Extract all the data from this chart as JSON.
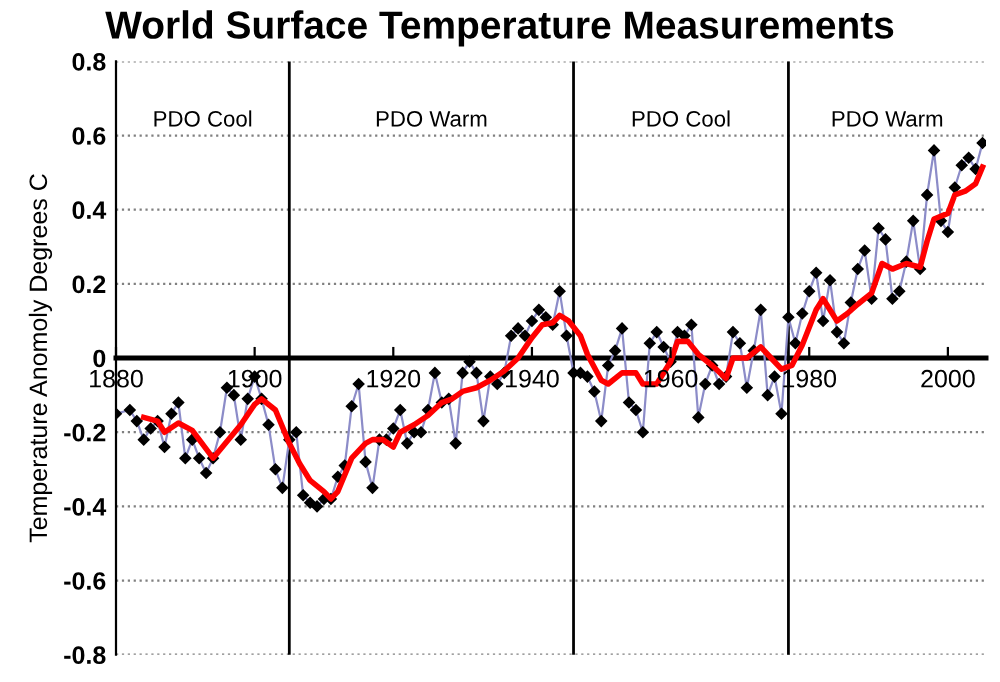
{
  "chart_data": {
    "type": "line",
    "title": "World Surface Temperature Measurements",
    "ylabel": "Temperature Anomoly Degrees C",
    "xlim": [
      1880,
      2005.5
    ],
    "xticks": [
      1880,
      1900,
      1920,
      1940,
      1960,
      1980,
      2000
    ],
    "ylim": [
      -0.8,
      0.8
    ],
    "yticks": [
      -0.8,
      -0.6,
      -0.4,
      -0.2,
      0,
      0.2,
      0.4,
      0.6,
      0.8
    ],
    "grid": "y",
    "legend": false,
    "ref_lines": [
      {
        "axis": "x",
        "value": 1905,
        "color": "#000000"
      },
      {
        "axis": "x",
        "value": 1946,
        "color": "#000000"
      },
      {
        "axis": "x",
        "value": 1977,
        "color": "#000000"
      }
    ],
    "annotations": [
      "PDO Cool",
      "PDO Warm",
      "PDO Cool",
      "PDO Warm"
    ],
    "series": [
      {
        "color": "#8c8cc8",
        "marker": "diamond",
        "x": [
          1880,
          1882,
          1883,
          1884,
          1885,
          1886,
          1887,
          1888,
          1889,
          1890,
          1891,
          1892,
          1893,
          1894,
          1895,
          1896,
          1897,
          1898,
          1899,
          1900,
          1901,
          1902,
          1903,
          1904,
          1905,
          1906,
          1907,
          1908,
          1909,
          1910,
          1911,
          1912,
          1913,
          1914,
          1915,
          1916,
          1917,
          1918,
          1919,
          1920,
          1921,
          1922,
          1923,
          1924,
          1925,
          1926,
          1927,
          1928,
          1929,
          1930,
          1931,
          1932,
          1933,
          1934,
          1935,
          1936,
          1937,
          1938,
          1939,
          1940,
          1941,
          1942,
          1943,
          1944,
          1945,
          1946,
          1947,
          1948,
          1949,
          1950,
          1951,
          1952,
          1953,
          1954,
          1955,
          1956,
          1957,
          1958,
          1959,
          1960,
          1961,
          1962,
          1963,
          1964,
          1965,
          1966,
          1967,
          1968,
          1969,
          1970,
          1971,
          1972,
          1973,
          1974,
          1975,
          1976,
          1977,
          1978,
          1979,
          1980,
          1981,
          1982,
          1983,
          1984,
          1985,
          1986,
          1987,
          1988,
          1989,
          1990,
          1991,
          1992,
          1993,
          1994,
          1995,
          1996,
          1997,
          1998,
          1999,
          2000,
          2001,
          2002,
          2003,
          2004,
          2005
        ],
        "values": [
          -0.15,
          -0.14,
          -0.17,
          -0.22,
          -0.19,
          -0.17,
          -0.24,
          -0.15,
          -0.12,
          -0.27,
          -0.22,
          -0.27,
          -0.31,
          -0.27,
          -0.2,
          -0.08,
          -0.1,
          -0.22,
          -0.11,
          -0.05,
          -0.11,
          -0.18,
          -0.3,
          -0.35,
          -0.22,
          -0.2,
          -0.37,
          -0.39,
          -0.4,
          -0.38,
          -0.38,
          -0.32,
          -0.29,
          -0.13,
          -0.07,
          -0.28,
          -0.35,
          -0.22,
          -0.22,
          -0.19,
          -0.14,
          -0.23,
          -0.2,
          -0.2,
          -0.14,
          -0.04,
          -0.12,
          -0.11,
          -0.23,
          -0.04,
          -0.01,
          -0.04,
          -0.17,
          -0.05,
          -0.07,
          -0.04,
          0.06,
          0.08,
          0.06,
          0.1,
          0.13,
          0.11,
          0.09,
          0.18,
          0.06,
          -0.04,
          -0.04,
          -0.05,
          -0.09,
          -0.17,
          -0.02,
          0.02,
          0.08,
          -0.12,
          -0.14,
          -0.2,
          0.04,
          0.07,
          0.03,
          -0.01,
          0.07,
          0.06,
          0.09,
          -0.16,
          -0.07,
          -0.02,
          -0.07,
          -0.05,
          0.07,
          0.04,
          -0.08,
          0.02,
          0.13,
          -0.1,
          -0.05,
          -0.15,
          0.11,
          0.04,
          0.12,
          0.18,
          0.23,
          0.1,
          0.21,
          0.07,
          0.04,
          0.15,
          0.24,
          0.29,
          0.16,
          0.35,
          0.32,
          0.16,
          0.18,
          0.26,
          0.37,
          0.24,
          0.44,
          0.56,
          0.37,
          0.34,
          0.46,
          0.52,
          0.54,
          0.51,
          0.58
        ]
      },
      {
        "color": "#ff0000",
        "marker": "none",
        "x": [
          1884,
          1886,
          1887,
          1889,
          1891,
          1894,
          1896,
          1898,
          1900,
          1901,
          1903,
          1905,
          1906.5,
          1908,
          1910,
          1911,
          1912,
          1914,
          1916,
          1917,
          1918.5,
          1920,
          1921,
          1923,
          1925,
          1927,
          1928.5,
          1930,
          1932,
          1934,
          1936,
          1938,
          1940,
          1941.5,
          1943,
          1944,
          1945.3,
          1947,
          1948,
          1950,
          1951,
          1953,
          1955,
          1956,
          1958,
          1960,
          1961,
          1962.5,
          1964,
          1966,
          1968,
          1969,
          1971,
          1973,
          1975,
          1976,
          1977.5,
          1979,
          1981,
          1982,
          1984,
          1985.5,
          1987,
          1989,
          1990.5,
          1992,
          1994,
          1996,
          1997,
          1998,
          2000,
          2001,
          2002.5,
          2004,
          2005
        ],
        "values": [
          -0.16,
          -0.17,
          -0.2,
          -0.175,
          -0.195,
          -0.27,
          -0.225,
          -0.18,
          -0.125,
          -0.11,
          -0.14,
          -0.23,
          -0.285,
          -0.33,
          -0.36,
          -0.38,
          -0.36,
          -0.27,
          -0.23,
          -0.22,
          -0.22,
          -0.24,
          -0.2,
          -0.18,
          -0.155,
          -0.12,
          -0.11,
          -0.09,
          -0.08,
          -0.06,
          -0.035,
          0.0,
          0.055,
          0.09,
          0.095,
          0.115,
          0.1,
          0.06,
          0.01,
          -0.06,
          -0.07,
          -0.04,
          -0.04,
          -0.07,
          -0.07,
          -0.01,
          0.045,
          0.045,
          0.01,
          -0.02,
          -0.055,
          0.0,
          0.0,
          0.03,
          -0.01,
          -0.03,
          -0.02,
          0.035,
          0.13,
          0.16,
          0.1,
          0.12,
          0.145,
          0.175,
          0.255,
          0.24,
          0.255,
          0.245,
          0.315,
          0.375,
          0.39,
          0.44,
          0.45,
          0.47,
          0.515
        ]
      }
    ]
  }
}
